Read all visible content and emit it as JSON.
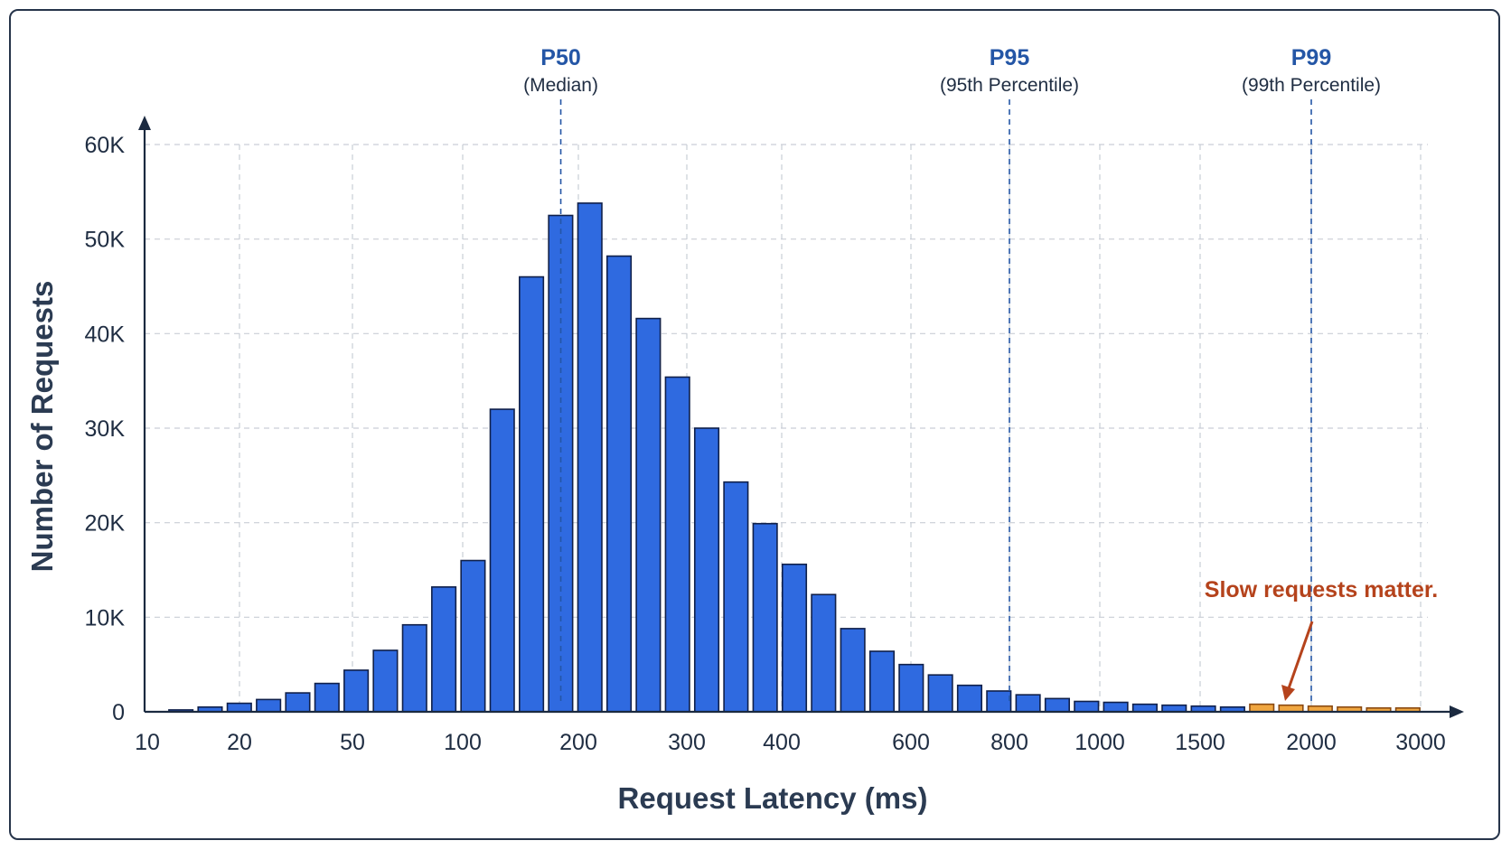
{
  "chart_data": {
    "type": "bar",
    "title": "",
    "xlabel": "Request Latency (ms)",
    "ylabel": "Number of Requests",
    "ylim": [
      0,
      60000
    ],
    "yticks": [
      {
        "value": 0,
        "label": "0"
      },
      {
        "value": 10000,
        "label": "10K"
      },
      {
        "value": 20000,
        "label": "20K"
      },
      {
        "value": 30000,
        "label": "30K"
      },
      {
        "value": 40000,
        "label": "40K"
      },
      {
        "value": 50000,
        "label": "50K"
      },
      {
        "value": 60000,
        "label": "60K"
      }
    ],
    "xticks": [
      "10",
      "20",
      "50",
      "100",
      "200",
      "300",
      "400",
      "600",
      "800",
      "1000",
      "1500",
      "2000",
      "3000"
    ],
    "grid": true,
    "series": [
      {
        "values": [
          200,
          500,
          900,
          1300,
          2000,
          3000,
          4400,
          6500,
          9200,
          13200,
          16000,
          32000,
          46000,
          52500,
          53800,
          48200,
          41600,
          35400,
          30000,
          24300,
          19900,
          15600,
          12400,
          8800,
          6400,
          5000,
          3900,
          2800,
          2200,
          1800,
          1400,
          1100,
          1000,
          800,
          700,
          600,
          500,
          800,
          700,
          600,
          500,
          400,
          400
        ]
      }
    ],
    "highlight": {
      "start_index": 37,
      "color": "#f0a640",
      "note": "Slow requests matter."
    },
    "colors": {
      "bar": "#2f6ae0",
      "bar_outline": "#10204a",
      "highlight": "#f0a640",
      "percentile_line": "#2456a6",
      "annotation": "#b5431c"
    },
    "percentiles": [
      {
        "label": "P50",
        "sublabel": "(Median)",
        "value_ms": 180
      },
      {
        "label": "P95",
        "sublabel": "(95th Percentile)",
        "value_ms": 800
      },
      {
        "label": "P99",
        "sublabel": "(99th Percentile)",
        "value_ms": 2000
      }
    ]
  }
}
